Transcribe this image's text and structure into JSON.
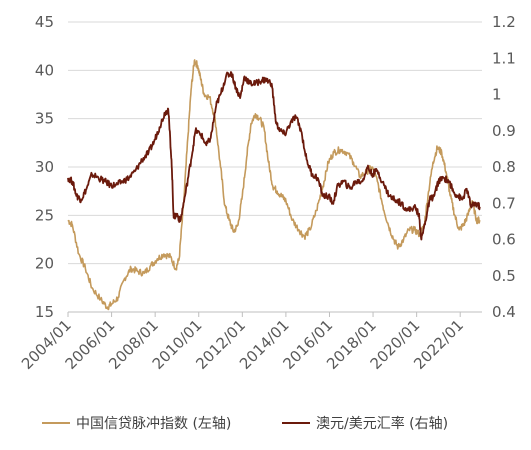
{
  "chart_data": {
    "type": "line",
    "title": "",
    "x_tick_labels": [
      "2004/01",
      "2006/01",
      "2008/01",
      "2010/01",
      "2012/01",
      "2014/01",
      "2016/01",
      "2018/01",
      "2020/01",
      "2022/01"
    ],
    "x_range": [
      2004.0,
      2023.0
    ],
    "y_left": {
      "min": 15,
      "max": 45,
      "ticks": [
        "15",
        "20",
        "25",
        "30",
        "35",
        "40",
        "45"
      ]
    },
    "y_right": {
      "min": 0.4,
      "max": 1.2,
      "ticks": [
        "0.4",
        "0.5",
        "0.6",
        "0.7",
        "0.8",
        "0.9",
        "1",
        "1.1",
        "1.2"
      ]
    },
    "grid": "horizontal",
    "legend_position": "bottom",
    "series": [
      {
        "name": "中国信贷脉冲指数 (左轴)",
        "axis": "left",
        "color": "#C49A5C",
        "points": [
          [
            2004.0,
            24.5
          ],
          [
            2004.2,
            24.0
          ],
          [
            2004.5,
            21.0
          ],
          [
            2004.8,
            19.5
          ],
          [
            2005.1,
            17.5
          ],
          [
            2005.5,
            16.3
          ],
          [
            2005.8,
            15.5
          ],
          [
            2006.0,
            15.8
          ],
          [
            2006.3,
            16.5
          ],
          [
            2006.6,
            18.5
          ],
          [
            2006.9,
            19.5
          ],
          [
            2007.2,
            19.2
          ],
          [
            2007.5,
            19.0
          ],
          [
            2007.8,
            19.8
          ],
          [
            2008.1,
            20.5
          ],
          [
            2008.4,
            21.0
          ],
          [
            2008.7,
            20.7
          ],
          [
            2008.95,
            19.5
          ],
          [
            2009.1,
            20.5
          ],
          [
            2009.3,
            26.0
          ],
          [
            2009.5,
            33.0
          ],
          [
            2009.65,
            38.0
          ],
          [
            2009.8,
            41.0
          ],
          [
            2009.95,
            40.5
          ],
          [
            2010.1,
            39.0
          ],
          [
            2010.25,
            37.5
          ],
          [
            2010.5,
            37.2
          ],
          [
            2010.75,
            35.0
          ],
          [
            2011.0,
            30.0
          ],
          [
            2011.2,
            26.0
          ],
          [
            2011.4,
            24.5
          ],
          [
            2011.6,
            23.3
          ],
          [
            2011.8,
            24.0
          ],
          [
            2012.0,
            27.0
          ],
          [
            2012.2,
            31.0
          ],
          [
            2012.4,
            34.5
          ],
          [
            2012.6,
            35.5
          ],
          [
            2012.8,
            35.0
          ],
          [
            2013.0,
            34.0
          ],
          [
            2013.2,
            30.5
          ],
          [
            2013.4,
            28.0
          ],
          [
            2013.6,
            27.5
          ],
          [
            2013.8,
            27.0
          ],
          [
            2014.0,
            26.5
          ],
          [
            2014.3,
            24.5
          ],
          [
            2014.6,
            23.5
          ],
          [
            2014.85,
            22.8
          ],
          [
            2015.1,
            23.5
          ],
          [
            2015.4,
            25.5
          ],
          [
            2015.7,
            28.0
          ],
          [
            2015.95,
            30.5
          ],
          [
            2016.2,
            31.5
          ],
          [
            2016.5,
            31.8
          ],
          [
            2016.8,
            31.5
          ],
          [
            2017.1,
            30.5
          ],
          [
            2017.4,
            29.0
          ],
          [
            2017.7,
            29.5
          ],
          [
            2017.95,
            30.0
          ],
          [
            2018.2,
            28.5
          ],
          [
            2018.45,
            26.0
          ],
          [
            2018.7,
            24.0
          ],
          [
            2018.95,
            22.5
          ],
          [
            2019.15,
            21.7
          ],
          [
            2019.4,
            22.5
          ],
          [
            2019.65,
            23.5
          ],
          [
            2019.9,
            23.5
          ],
          [
            2020.15,
            23.0
          ],
          [
            2020.35,
            24.0
          ],
          [
            2020.55,
            27.5
          ],
          [
            2020.75,
            30.5
          ],
          [
            2020.95,
            32.0
          ],
          [
            2021.15,
            31.5
          ],
          [
            2021.35,
            29.5
          ],
          [
            2021.55,
            27.0
          ],
          [
            2021.75,
            25.0
          ],
          [
            2021.95,
            23.5
          ],
          [
            2022.15,
            24.0
          ],
          [
            2022.35,
            25.0
          ],
          [
            2022.55,
            26.5
          ],
          [
            2022.75,
            24.5
          ],
          [
            2022.9,
            24.5
          ]
        ]
      },
      {
        "name": "澳元/美元汇率 (右轴)",
        "axis": "right",
        "color": "#6B1A0C",
        "points": [
          [
            2004.0,
            0.77
          ],
          [
            2004.2,
            0.76
          ],
          [
            2004.4,
            0.72
          ],
          [
            2004.6,
            0.71
          ],
          [
            2004.85,
            0.74
          ],
          [
            2005.1,
            0.78
          ],
          [
            2005.4,
            0.77
          ],
          [
            2005.7,
            0.76
          ],
          [
            2005.95,
            0.75
          ],
          [
            2006.2,
            0.75
          ],
          [
            2006.5,
            0.76
          ],
          [
            2006.8,
            0.77
          ],
          [
            2007.1,
            0.79
          ],
          [
            2007.4,
            0.82
          ],
          [
            2007.7,
            0.84
          ],
          [
            2007.95,
            0.87
          ],
          [
            2008.2,
            0.91
          ],
          [
            2008.45,
            0.95
          ],
          [
            2008.6,
            0.96
          ],
          [
            2008.75,
            0.82
          ],
          [
            2008.85,
            0.66
          ],
          [
            2009.0,
            0.67
          ],
          [
            2009.15,
            0.65
          ],
          [
            2009.4,
            0.73
          ],
          [
            2009.65,
            0.82
          ],
          [
            2009.85,
            0.9
          ],
          [
            2010.1,
            0.89
          ],
          [
            2010.35,
            0.86
          ],
          [
            2010.55,
            0.88
          ],
          [
            2010.8,
            0.97
          ],
          [
            2011.0,
            1.0
          ],
          [
            2011.25,
            1.05
          ],
          [
            2011.5,
            1.06
          ],
          [
            2011.7,
            1.02
          ],
          [
            2011.9,
            0.99
          ],
          [
            2012.1,
            1.05
          ],
          [
            2012.35,
            1.03
          ],
          [
            2012.6,
            1.03
          ],
          [
            2012.9,
            1.04
          ],
          [
            2013.1,
            1.04
          ],
          [
            2013.35,
            1.03
          ],
          [
            2013.55,
            0.92
          ],
          [
            2013.75,
            0.9
          ],
          [
            2013.95,
            0.89
          ],
          [
            2014.2,
            0.92
          ],
          [
            2014.45,
            0.94
          ],
          [
            2014.7,
            0.9
          ],
          [
            2014.95,
            0.82
          ],
          [
            2015.2,
            0.78
          ],
          [
            2015.45,
            0.77
          ],
          [
            2015.7,
            0.72
          ],
          [
            2015.95,
            0.72
          ],
          [
            2016.15,
            0.7
          ],
          [
            2016.4,
            0.75
          ],
          [
            2016.65,
            0.76
          ],
          [
            2016.95,
            0.74
          ],
          [
            2017.2,
            0.76
          ],
          [
            2017.5,
            0.76
          ],
          [
            2017.75,
            0.8
          ],
          [
            2017.95,
            0.78
          ],
          [
            2018.2,
            0.79
          ],
          [
            2018.5,
            0.75
          ],
          [
            2018.75,
            0.72
          ],
          [
            2019.0,
            0.71
          ],
          [
            2019.3,
            0.7
          ],
          [
            2019.6,
            0.68
          ],
          [
            2019.9,
            0.69
          ],
          [
            2020.1,
            0.67
          ],
          [
            2020.22,
            0.6
          ],
          [
            2020.4,
            0.65
          ],
          [
            2020.6,
            0.71
          ],
          [
            2020.8,
            0.72
          ],
          [
            2021.0,
            0.76
          ],
          [
            2021.25,
            0.77
          ],
          [
            2021.5,
            0.76
          ],
          [
            2021.7,
            0.73
          ],
          [
            2021.9,
            0.72
          ],
          [
            2022.1,
            0.71
          ],
          [
            2022.3,
            0.74
          ],
          [
            2022.5,
            0.69
          ],
          [
            2022.7,
            0.7
          ],
          [
            2022.9,
            0.69
          ]
        ]
      }
    ]
  }
}
